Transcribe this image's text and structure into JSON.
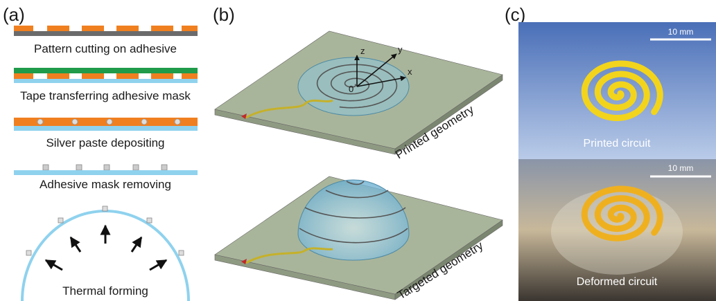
{
  "panel_a": {
    "label": "(a)",
    "steps": [
      "Pattern cutting on adhesive",
      "Tape transferring adhesive mask",
      "Silver paste depositing",
      "Adhesive mask removing",
      "Thermal forming"
    ]
  },
  "panel_b": {
    "label": "(b)",
    "axes": [
      "z",
      "y",
      "x",
      "0"
    ],
    "captions": [
      "Printed geometry",
      "Targeted geometry"
    ]
  },
  "panel_c": {
    "label": "(c)",
    "scale_bars": [
      "10 mm",
      "10 mm"
    ],
    "captions": [
      "Printed circuit",
      "Deformed circuit"
    ]
  }
}
